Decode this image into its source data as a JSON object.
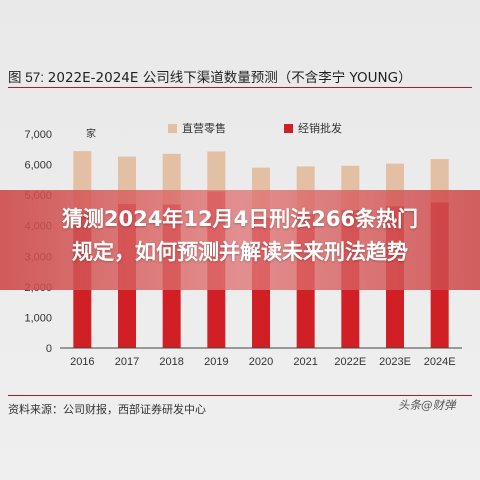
{
  "figure": {
    "label": "图 57: ",
    "title": "2022E-2024E 公司线下渠道数量预测（不含李宁 YOUNG）"
  },
  "source": "资料来源：公司财报，西部证券研发中心",
  "watermark": "头条@财弹",
  "overlay": {
    "line1": "猜测2024年12月4日刑法266条热门",
    "line2": "规定，如何预测并解读未来刑法趋势"
  },
  "chart_data": {
    "type": "bar",
    "stacked": true,
    "categories": [
      "2016",
      "2017",
      "2018",
      "2019",
      "2020",
      "2021",
      "2022E",
      "2023E",
      "2024E"
    ],
    "series": [
      {
        "name": "经销批发",
        "color": "#d01f25",
        "values": [
          4430,
          4710,
          4700,
          5130,
          4280,
          4380,
          4520,
          4640,
          4760
        ]
      },
      {
        "name": "直营零售",
        "color": "#e3c0a3",
        "values": [
          2010,
          1550,
          1650,
          1300,
          1620,
          1560,
          1440,
          1390,
          1420
        ]
      }
    ],
    "ylabel_fragment": "家",
    "ylim": [
      0,
      7000
    ],
    "yticks": [
      0,
      1000,
      2000,
      3000,
      4000,
      5000,
      6000,
      7000
    ],
    "ytick_labels": [
      "0",
      "1,000",
      "2,000",
      "3,000",
      "4,000",
      "5,000",
      "6,000",
      "7,000"
    ],
    "grid": false,
    "legend_position": "top"
  }
}
